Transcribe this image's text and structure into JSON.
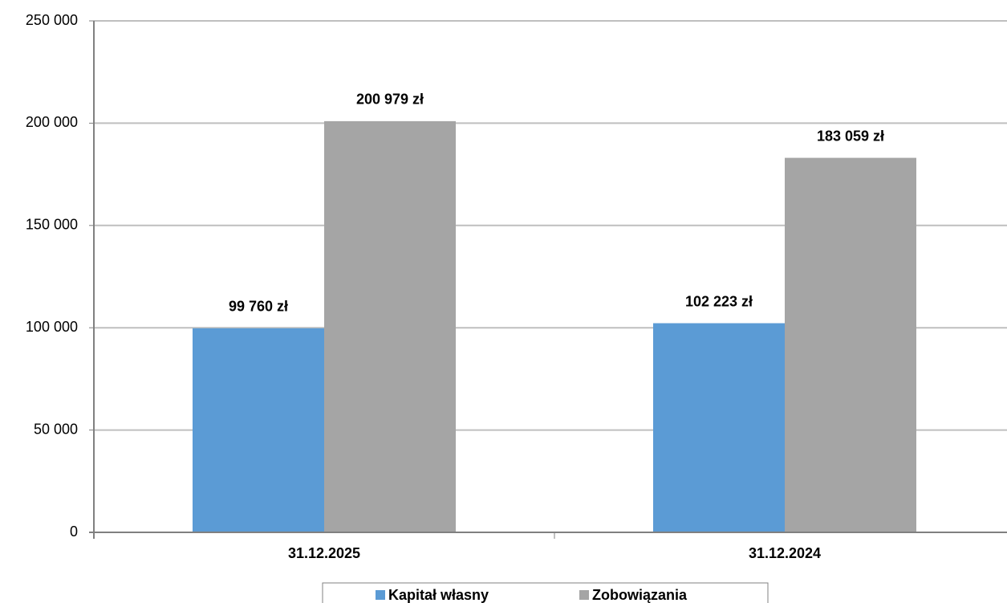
{
  "chart_data": {
    "type": "bar",
    "categories": [
      "31.12.2025",
      "31.12.2024"
    ],
    "series": [
      {
        "name": "Kapitał własny",
        "color": "#5b9bd5",
        "values": [
          99760,
          102223
        ],
        "value_labels": [
          "99 760 zł",
          "102 223 zł"
        ]
      },
      {
        "name": "Zobowiązania",
        "color": "#a5a5a5",
        "values": [
          200979,
          183059
        ],
        "value_labels": [
          "200 979 zł",
          "183 059 zł"
        ]
      }
    ],
    "ylim": [
      0,
      250000
    ],
    "yticks": [
      0,
      {
        "value": 50000,
        "label": "50 000"
      },
      {
        "value": 100000,
        "label": "100 000"
      },
      {
        "value": 150000,
        "label": "150 000"
      },
      {
        "value": 200000,
        "label": "200 000"
      },
      {
        "value": 250000,
        "label": "250 000"
      }
    ],
    "grid": true,
    "legend": "bottom"
  }
}
